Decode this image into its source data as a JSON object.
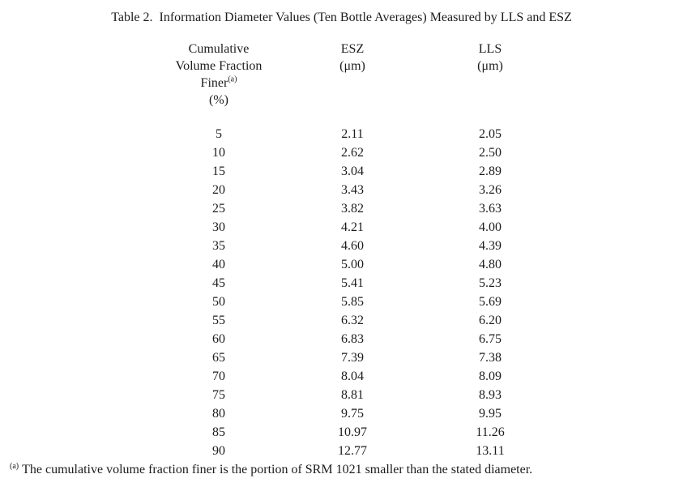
{
  "title": "Table 2.  Information Diameter Values (Ten Bottle Averages) Measured by LLS and ESZ",
  "table": {
    "col1": {
      "line1": "Cumulative",
      "line2": "Volume Fraction",
      "line3": "Finer",
      "line3_sup": "(a)",
      "line4": "(%)"
    },
    "col2": {
      "name": "ESZ",
      "unit": "(μm)"
    },
    "col3": {
      "name": "LLS",
      "unit": "(μm)"
    },
    "rows": [
      [
        "5",
        "2.11",
        "2.05"
      ],
      [
        "10",
        "2.62",
        "2.50"
      ],
      [
        "15",
        "3.04",
        "2.89"
      ],
      [
        "20",
        "3.43",
        "3.26"
      ],
      [
        "25",
        "3.82",
        "3.63"
      ],
      [
        "30",
        "4.21",
        "4.00"
      ],
      [
        "35",
        "4.60",
        "4.39"
      ],
      [
        "40",
        "5.00",
        "4.80"
      ],
      [
        "45",
        "5.41",
        "5.23"
      ],
      [
        "50",
        "5.85",
        "5.69"
      ],
      [
        "55",
        "6.32",
        "6.20"
      ],
      [
        "60",
        "6.83",
        "6.75"
      ],
      [
        "65",
        "7.39",
        "7.38"
      ],
      [
        "70",
        "8.04",
        "8.09"
      ],
      [
        "75",
        "8.81",
        "8.93"
      ],
      [
        "80",
        "9.75",
        "9.95"
      ],
      [
        "85",
        "10.97",
        "11.26"
      ],
      [
        "90",
        "12.77",
        "13.11"
      ]
    ]
  },
  "footnote": {
    "marker": "(a)",
    "text": "The cumulative volume fraction finer is the portion of SRM 1021 smaller than the stated diameter."
  },
  "colors": {
    "background": "#ffffff",
    "text": "#1c1c1c"
  }
}
